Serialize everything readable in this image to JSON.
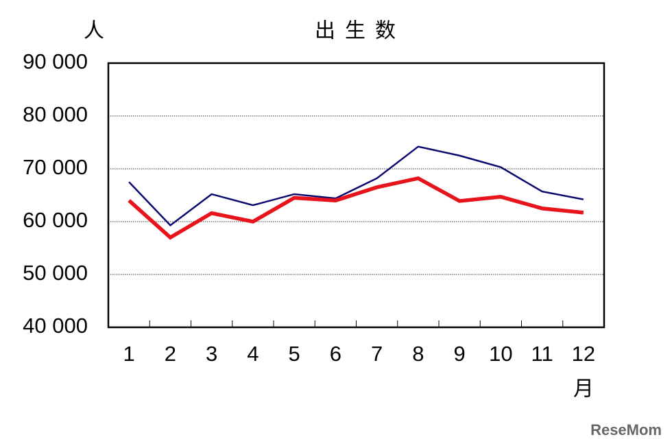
{
  "chart_data": {
    "type": "line",
    "title": "出生数",
    "y_unit": "人",
    "x_unit": "月",
    "watermark": "ReseMom",
    "categories": [
      "1",
      "2",
      "3",
      "4",
      "5",
      "6",
      "7",
      "8",
      "9",
      "10",
      "11",
      "12"
    ],
    "series": [
      {
        "color": "#0a0a6e",
        "width": 2.5,
        "values": [
          67500,
          59300,
          65200,
          63100,
          65200,
          64400,
          68200,
          74200,
          72500,
          70300,
          65700,
          64200
        ]
      },
      {
        "color": "#e8141b",
        "width": 5.5,
        "values": [
          64000,
          57000,
          61600,
          60000,
          64500,
          64000,
          66500,
          68200,
          63900,
          64700,
          62500,
          61700
        ]
      }
    ],
    "ylim": [
      40000,
      90000
    ],
    "yticks": [
      {
        "value": 40000,
        "label": "40 000"
      },
      {
        "value": 50000,
        "label": "50 000"
      },
      {
        "value": 60000,
        "label": "60 000"
      },
      {
        "value": 70000,
        "label": "70 000"
      },
      {
        "value": 80000,
        "label": "80 000"
      },
      {
        "value": 90000,
        "label": "90 000"
      }
    ],
    "grid": true
  }
}
